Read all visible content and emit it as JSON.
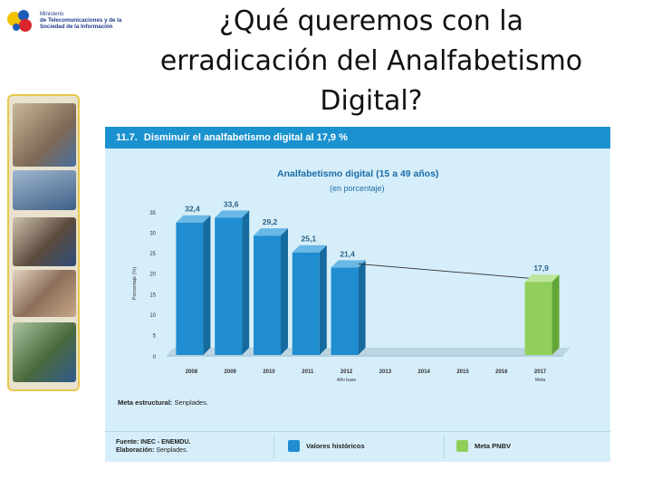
{
  "logo": {
    "line1": "Ministerio",
    "line2": "de Telecomunicaciones y de la",
    "line3": "Sociedad de la Información"
  },
  "title": "¿Qué queremos con la erradicación del Analfabetismo Digital?",
  "panel": {
    "header_number": "11.7.",
    "header_text": "Disminuir el analfabetismo digital al 17,9 %",
    "meta_label": "Meta estructural:",
    "meta_value": "Senplades.",
    "source_label": "Fuente:",
    "source_value": "INEC - ENEMDU.",
    "elab_label": "Elaboración:",
    "elab_value": "Senplades.",
    "legend_historic": "Valores históricos",
    "legend_target": "Meta PNBV"
  },
  "colors": {
    "header_blue": "#1a92cf",
    "panel_bg": "#d6eef9",
    "bar_blue": "#1f8dd0",
    "bar_green": "#8fcf5a"
  },
  "chart_data": {
    "type": "bar",
    "title": "Analfabetismo digital (15 a 49 años)",
    "subtitle": "(en porcentaje)",
    "ylabel": "Porcentaje (%)",
    "categories": [
      "2008",
      "2009",
      "2010",
      "2011",
      "2012",
      "2013",
      "2014",
      "2015",
      "2016",
      "2017"
    ],
    "category_notes": {
      "2012": "Año base",
      "2017": "Meta"
    },
    "yticks": [
      0,
      5,
      10,
      15,
      20,
      25,
      30,
      35
    ],
    "ylim": [
      0,
      35
    ],
    "series": [
      {
        "name": "Valores históricos",
        "values": [
          32.4,
          33.6,
          29.2,
          25.1,
          21.4,
          null,
          null,
          null,
          null,
          null
        ],
        "labels": [
          "32,4",
          "33,6",
          "29,2",
          "25,1",
          "21,4",
          "",
          "",
          "",
          "",
          ""
        ]
      },
      {
        "name": "Meta PNBV",
        "values": [
          null,
          null,
          null,
          null,
          null,
          null,
          null,
          null,
          null,
          17.9
        ],
        "labels": [
          "",
          "",
          "",
          "",
          "",
          "",
          "",
          "",
          "",
          "17,9"
        ]
      }
    ],
    "trend_line": {
      "from": "2012",
      "to": "2017"
    }
  }
}
